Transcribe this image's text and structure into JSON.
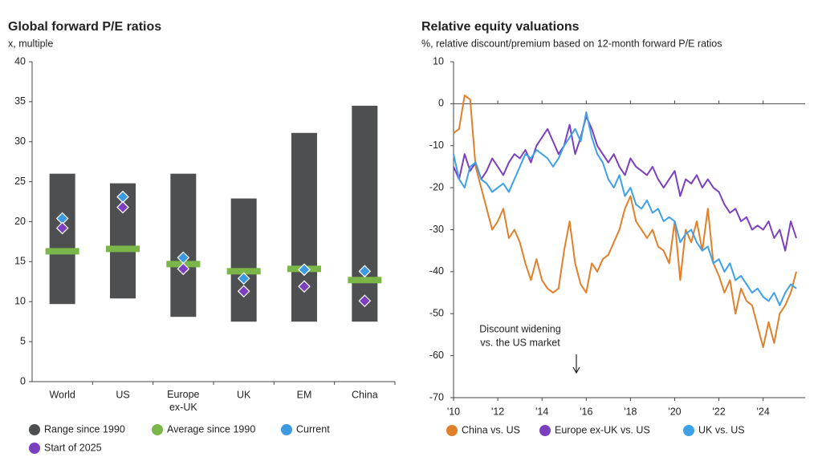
{
  "chart_data": [
    {
      "type": "range",
      "title": "Global forward P/E ratios",
      "subtitle": "x, multiple",
      "categories": [
        "World",
        "US",
        "Europe ex-UK",
        "UK",
        "EM",
        "China"
      ],
      "ylim": [
        0,
        40
      ],
      "yticks": [
        0,
        5,
        10,
        15,
        20,
        25,
        30,
        35,
        40
      ],
      "series": [
        {
          "name": "Range since 1990",
          "color": "#4d4f51",
          "low": [
            9.7,
            10.4,
            8.1,
            7.5,
            7.5,
            7.5
          ],
          "high": [
            26,
            24.8,
            26,
            22.9,
            31.1,
            34.5
          ]
        },
        {
          "name": "Average since 1990",
          "color": "#7ab648",
          "values": [
            16.3,
            16.6,
            14.7,
            13.8,
            14.1,
            12.7
          ]
        },
        {
          "name": "Current",
          "color": "#3b9ae1",
          "values": [
            20.4,
            23.1,
            15.5,
            12.9,
            14.0,
            13.8
          ]
        },
        {
          "name": "Start of 2025",
          "color": "#7b3fbf",
          "values": [
            19.2,
            21.8,
            14.1,
            11.3,
            11.9,
            10.1
          ]
        }
      ]
    },
    {
      "type": "line",
      "title": "Relative equity valuations",
      "subtitle": "%, relative discount/premium based on 12-month forward P/E ratios",
      "annotation": [
        "Discount widening",
        "vs. the US market"
      ],
      "xlim": [
        2010,
        2025.9
      ],
      "xticks": [
        {
          "value": 2010,
          "label": "'10"
        },
        {
          "value": 2012,
          "label": "'12"
        },
        {
          "value": 2014,
          "label": "'14"
        },
        {
          "value": 2016,
          "label": "'16"
        },
        {
          "value": 2018,
          "label": "'18"
        },
        {
          "value": 2020,
          "label": "'20"
        },
        {
          "value": 2022,
          "label": "'22"
        },
        {
          "value": 2024,
          "label": "'24"
        }
      ],
      "ylim": [
        -70,
        10
      ],
      "yticks": [
        -70,
        -60,
        -50,
        -40,
        -30,
        -20,
        -10,
        0,
        10
      ],
      "x": [
        2010,
        2010.25,
        2010.5,
        2010.75,
        2011,
        2011.25,
        2011.5,
        2011.75,
        2012,
        2012.25,
        2012.5,
        2012.75,
        2013,
        2013.25,
        2013.5,
        2013.75,
        2014,
        2014.25,
        2014.5,
        2014.75,
        2015,
        2015.25,
        2015.5,
        2015.75,
        2016,
        2016.25,
        2016.5,
        2016.75,
        2017,
        2017.25,
        2017.5,
        2017.75,
        2018,
        2018.25,
        2018.5,
        2018.75,
        2019,
        2019.25,
        2019.5,
        2019.75,
        2020,
        2020.25,
        2020.5,
        2020.75,
        2021,
        2021.25,
        2021.5,
        2021.75,
        2022,
        2022.25,
        2022.5,
        2022.75,
        2023,
        2023.25,
        2023.5,
        2023.75,
        2024,
        2024.25,
        2024.5,
        2024.75,
        2025,
        2025.25,
        2025.5
      ],
      "series": [
        {
          "name": "China vs. US",
          "color": "#e0802a",
          "values": [
            -7,
            -6,
            2,
            1,
            -15,
            -20,
            -25,
            -30,
            -28,
            -25,
            -32,
            -30,
            -33,
            -38,
            -42,
            -37,
            -42,
            -44,
            -45,
            -44,
            -35,
            -28,
            -38,
            -43,
            -45,
            -38,
            -40,
            -37,
            -36,
            -33,
            -30,
            -25,
            -22,
            -28,
            -30,
            -32,
            -30,
            -34,
            -35,
            -38,
            -28,
            -42,
            -30,
            -33,
            -28,
            -35,
            -25,
            -38,
            -41,
            -45,
            -42,
            -50,
            -44,
            -47,
            -48,
            -53,
            -58,
            -52,
            -57,
            -50,
            -48,
            -45,
            -40
          ]
        },
        {
          "name": "Europe ex-UK vs. US",
          "color": "#7b3fbf",
          "values": [
            -15,
            -18,
            -12,
            -16,
            -14,
            -18,
            -16,
            -13,
            -15,
            -17,
            -14,
            -12,
            -13,
            -11,
            -14,
            -10,
            -8,
            -6,
            -9,
            -12,
            -10,
            -5,
            -12,
            -8,
            -3,
            -6,
            -10,
            -12,
            -14,
            -12,
            -15,
            -17,
            -13,
            -15,
            -16,
            -17,
            -15,
            -18,
            -20,
            -18,
            -16,
            -22,
            -18,
            -19,
            -17,
            -20,
            -18,
            -20,
            -21,
            -24,
            -26,
            -25,
            -28,
            -27,
            -30,
            -29,
            -30,
            -28,
            -32,
            -30,
            -35,
            -28,
            -32
          ]
        },
        {
          "name": "UK vs. US",
          "color": "#3ea0e6",
          "values": [
            -12,
            -18,
            -20,
            -15,
            -14,
            -18,
            -19,
            -21,
            -20,
            -19,
            -21,
            -18,
            -15,
            -12,
            -13,
            -11,
            -12,
            -13,
            -15,
            -13,
            -10,
            -8,
            -6,
            -9,
            -2,
            -8,
            -12,
            -14,
            -18,
            -20,
            -17,
            -22,
            -20,
            -24,
            -25,
            -23,
            -26,
            -25,
            -28,
            -27,
            -28,
            -33,
            -31,
            -30,
            -33,
            -35,
            -34,
            -38,
            -37,
            -40,
            -38,
            -42,
            -41,
            -43,
            -45,
            -44,
            -46,
            -47,
            -45,
            -48,
            -45,
            -43,
            -44
          ]
        }
      ]
    }
  ]
}
